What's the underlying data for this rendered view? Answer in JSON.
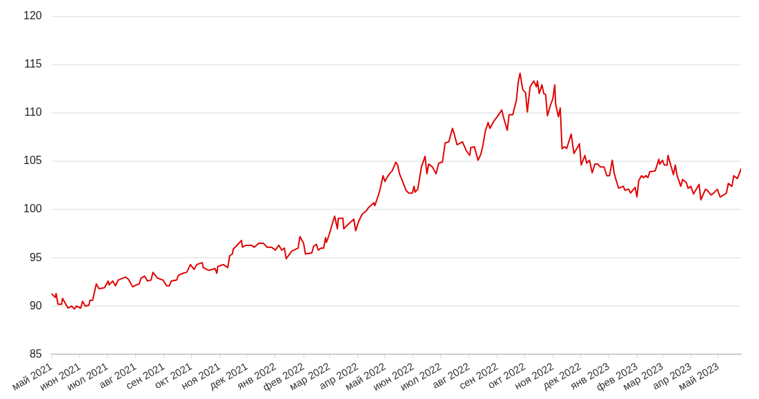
{
  "chart_data": {
    "type": "line",
    "grid": "y",
    "legend": false,
    "marker": "none",
    "line_style": "solid",
    "xlim": [
      "2021-05-01",
      "2023-05-26"
    ],
    "xticks": [
      {
        "value": "2021-05",
        "label": "май 2021"
      },
      {
        "value": "2021-06",
        "label": "июн 2021"
      },
      {
        "value": "2021-07",
        "label": "июл 2021"
      },
      {
        "value": "2021-08",
        "label": "авг 2021"
      },
      {
        "value": "2021-09",
        "label": "сен 2021"
      },
      {
        "value": "2021-10",
        "label": "окт 2021"
      },
      {
        "value": "2021-11",
        "label": "ноя 2021"
      },
      {
        "value": "2021-12",
        "label": "дек 2021"
      },
      {
        "value": "2022-01",
        "label": "янв 2022"
      },
      {
        "value": "2022-02",
        "label": "фев 2022"
      },
      {
        "value": "2022-03",
        "label": "мар 2022"
      },
      {
        "value": "2022-04",
        "label": "апр 2022"
      },
      {
        "value": "2022-05",
        "label": "май 2022"
      },
      {
        "value": "2022-06",
        "label": "июн 2022"
      },
      {
        "value": "2022-07",
        "label": "июл 2022"
      },
      {
        "value": "2022-08",
        "label": "авг 2022"
      },
      {
        "value": "2022-09",
        "label": "сен 2022"
      },
      {
        "value": "2022-10",
        "label": "окт 2022"
      },
      {
        "value": "2022-11",
        "label": "ноя 2022"
      },
      {
        "value": "2022-12",
        "label": "дек 2022"
      },
      {
        "value": "2023-01",
        "label": "янв 2023"
      },
      {
        "value": "2023-02",
        "label": "фев 2023"
      },
      {
        "value": "2023-03",
        "label": "мар 2023"
      },
      {
        "value": "2023-04",
        "label": "апр 2023"
      },
      {
        "value": "2023-05",
        "label": "май 2023"
      }
    ],
    "ylim": [
      85,
      120
    ],
    "yticks": [
      85,
      90,
      95,
      100,
      105,
      110,
      115,
      120
    ],
    "series": [
      {
        "color": "#e00000",
        "x": [
          "2021-05-01",
          "2021-05-05",
          "2021-05-06",
          "2021-05-08",
          "2021-05-12",
          "2021-05-13",
          "2021-05-16",
          "2021-05-19",
          "2021-05-23",
          "2021-05-26",
          "2021-05-28",
          "2021-06-02",
          "2021-06-04",
          "2021-06-07",
          "2021-06-11",
          "2021-06-12",
          "2021-06-15",
          "2021-06-19",
          "2021-06-22",
          "2021-06-28",
          "2021-07-02",
          "2021-07-03",
          "2021-07-07",
          "2021-07-10",
          "2021-07-13",
          "2021-07-21",
          "2021-07-24",
          "2021-07-29",
          "2021-08-02",
          "2021-08-05",
          "2021-08-07",
          "2021-08-11",
          "2021-08-14",
          "2021-08-18",
          "2021-08-20",
          "2021-08-25",
          "2021-08-31",
          "2021-09-04",
          "2021-09-07",
          "2021-09-09",
          "2021-09-15",
          "2021-09-17",
          "2021-09-22",
          "2021-09-26",
          "2021-09-30",
          "2021-10-04",
          "2021-10-07",
          "2021-10-13",
          "2021-10-14",
          "2021-10-20",
          "2021-10-24",
          "2021-10-27",
          "2021-10-29",
          "2021-10-30",
          "2021-11-05",
          "2021-11-10",
          "2021-11-12",
          "2021-11-15",
          "2021-11-16",
          "2021-11-21",
          "2021-11-25",
          "2021-11-26",
          "2021-11-30",
          "2021-12-06",
          "2021-12-09",
          "2021-12-14",
          "2021-12-19",
          "2021-12-23",
          "2021-12-28",
          "2022-01-01",
          "2022-01-05",
          "2022-01-08",
          "2022-01-11",
          "2022-01-13",
          "2022-01-16",
          "2022-01-19",
          "2022-01-26",
          "2022-01-28",
          "2022-02-01",
          "2022-02-03",
          "2022-02-10",
          "2022-02-12",
          "2022-02-15",
          "2022-02-17",
          "2022-02-20",
          "2022-02-23",
          "2022-02-25",
          "2022-02-26",
          "2022-03-01",
          "2022-03-05",
          "2022-03-07",
          "2022-03-10",
          "2022-03-11",
          "2022-03-16",
          "2022-03-17",
          "2022-03-21",
          "2022-03-28",
          "2022-03-30",
          "2022-04-02",
          "2022-04-06",
          "2022-04-11",
          "2022-04-13",
          "2022-04-19",
          "2022-04-20",
          "2022-04-24",
          "2022-04-26",
          "2022-04-29",
          "2022-05-01",
          "2022-05-04",
          "2022-05-06",
          "2022-05-09",
          "2022-05-13",
          "2022-05-15",
          "2022-05-17",
          "2022-05-20",
          "2022-05-24",
          "2022-05-27",
          "2022-05-31",
          "2022-06-02",
          "2022-06-03",
          "2022-06-06",
          "2022-06-10",
          "2022-06-14",
          "2022-06-16",
          "2022-06-18",
          "2022-06-22",
          "2022-06-26",
          "2022-06-29",
          "2022-07-03",
          "2022-07-06",
          "2022-07-10",
          "2022-07-14",
          "2022-07-16",
          "2022-07-19",
          "2022-07-25",
          "2022-07-29",
          "2022-08-02",
          "2022-08-03",
          "2022-08-07",
          "2022-08-11",
          "2022-08-14",
          "2022-08-16",
          "2022-08-19",
          "2022-08-22",
          "2022-08-24",
          "2022-08-28",
          "2022-09-01",
          "2022-09-06",
          "2022-09-08",
          "2022-09-12",
          "2022-09-14",
          "2022-09-18",
          "2022-09-22",
          "2022-09-24",
          "2022-09-26",
          "2022-09-29",
          "2022-10-02",
          "2022-10-04",
          "2022-10-07",
          "2022-10-11",
          "2022-10-14",
          "2022-10-15",
          "2022-10-17",
          "2022-10-20",
          "2022-10-22",
          "2022-10-24",
          "2022-10-26",
          "2022-10-29",
          "2022-11-01",
          "2022-11-03",
          "2022-11-04",
          "2022-11-07",
          "2022-11-09",
          "2022-11-11",
          "2022-11-14",
          "2022-11-16",
          "2022-11-21",
          "2022-11-24",
          "2022-11-30",
          "2022-12-02",
          "2022-12-06",
          "2022-12-08",
          "2022-12-11",
          "2022-12-14",
          "2022-12-17",
          "2022-12-20",
          "2022-12-23",
          "2022-12-27",
          "2022-12-30",
          "2023-01-02",
          "2023-01-05",
          "2023-01-07",
          "2023-01-09",
          "2023-01-12",
          "2023-01-17",
          "2023-01-19",
          "2023-01-23",
          "2023-01-25",
          "2023-01-30",
          "2023-02-01",
          "2023-02-03",
          "2023-02-06",
          "2023-02-08",
          "2023-02-11",
          "2023-02-13",
          "2023-02-15",
          "2023-02-21",
          "2023-02-25",
          "2023-02-26",
          "2023-03-01",
          "2023-03-03",
          "2023-03-06",
          "2023-03-07",
          "2023-03-10",
          "2023-03-13",
          "2023-03-15",
          "2023-03-17",
          "2023-03-21",
          "2023-03-23",
          "2023-03-27",
          "2023-03-29",
          "2023-04-01",
          "2023-04-04",
          "2023-04-10",
          "2023-04-12",
          "2023-04-17",
          "2023-04-19",
          "2023-04-23",
          "2023-04-26",
          "2023-04-30",
          "2023-05-03",
          "2023-05-07",
          "2023-05-10",
          "2023-05-12",
          "2023-05-16",
          "2023-05-18",
          "2023-05-22",
          "2023-05-26"
        ],
        "values": [
          91.3,
          90.9,
          91.3,
          90.2,
          90.2,
          90.8,
          90.3,
          89.8,
          90.0,
          89.7,
          90.0,
          89.8,
          90.5,
          90.0,
          90.1,
          90.6,
          90.6,
          92.3,
          91.8,
          91.9,
          92.6,
          92.2,
          92.6,
          92.1,
          92.7,
          93.0,
          92.8,
          92.0,
          92.2,
          92.3,
          92.9,
          93.1,
          92.6,
          92.7,
          93.5,
          92.9,
          92.7,
          92.1,
          92.1,
          92.6,
          92.7,
          93.2,
          93.4,
          93.5,
          94.3,
          93.8,
          94.3,
          94.5,
          94.0,
          93.7,
          93.8,
          93.9,
          93.4,
          94.1,
          94.3,
          94.0,
          95.2,
          95.4,
          95.9,
          96.4,
          96.8,
          96.1,
          96.3,
          96.3,
          96.1,
          96.5,
          96.5,
          96.1,
          96.1,
          95.8,
          96.3,
          95.8,
          96.0,
          94.9,
          95.3,
          95.7,
          96.0,
          97.2,
          96.5,
          95.4,
          95.5,
          96.2,
          96.4,
          95.8,
          96.0,
          96.0,
          97.1,
          96.6,
          97.4,
          98.7,
          99.3,
          98.0,
          99.1,
          99.1,
          98.0,
          98.4,
          99.0,
          97.8,
          98.7,
          99.5,
          99.9,
          100.2,
          100.7,
          100.4,
          101.5,
          102.2,
          103.5,
          102.9,
          103.4,
          103.7,
          104.0,
          104.9,
          104.6,
          103.7,
          103.0,
          102.0,
          101.7,
          101.7,
          102.4,
          101.8,
          102.1,
          104.4,
          105.5,
          103.7,
          104.7,
          104.4,
          103.7,
          104.8,
          104.9,
          106.9,
          107.0,
          108.4,
          107.8,
          106.7,
          107.0,
          106.1,
          105.6,
          106.4,
          106.5,
          105.1,
          105.7,
          106.5,
          108.1,
          109.0,
          108.4,
          109.1,
          109.6,
          110.3,
          109.5,
          108.2,
          109.8,
          109.8,
          111.3,
          113.2,
          114.1,
          112.4,
          112.1,
          110.1,
          112.7,
          113.3,
          112.7,
          113.3,
          112.0,
          112.9,
          112.0,
          111.9,
          109.7,
          110.7,
          111.5,
          112.9,
          110.9,
          109.6,
          110.5,
          106.3,
          106.5,
          106.3,
          107.8,
          105.8,
          106.8,
          104.6,
          105.6,
          104.8,
          105.1,
          103.8,
          104.7,
          104.7,
          104.4,
          104.4,
          103.5,
          103.5,
          105.1,
          103.8,
          103.1,
          102.2,
          102.4,
          102.0,
          102.1,
          101.7,
          102.3,
          101.3,
          103.0,
          103.5,
          103.3,
          103.5,
          103.3,
          103.9,
          104.0,
          105.2,
          104.7,
          105.1,
          104.6,
          104.6,
          105.6,
          104.6,
          103.6,
          104.6,
          103.5,
          102.4,
          103.1,
          102.8,
          102.2,
          102.4,
          101.6,
          102.6,
          101.0,
          102.1,
          102.0,
          101.5,
          101.7,
          102.1,
          101.3,
          101.5,
          101.7,
          102.7,
          102.4,
          103.5,
          103.2,
          104.2
        ]
      }
    ]
  }
}
